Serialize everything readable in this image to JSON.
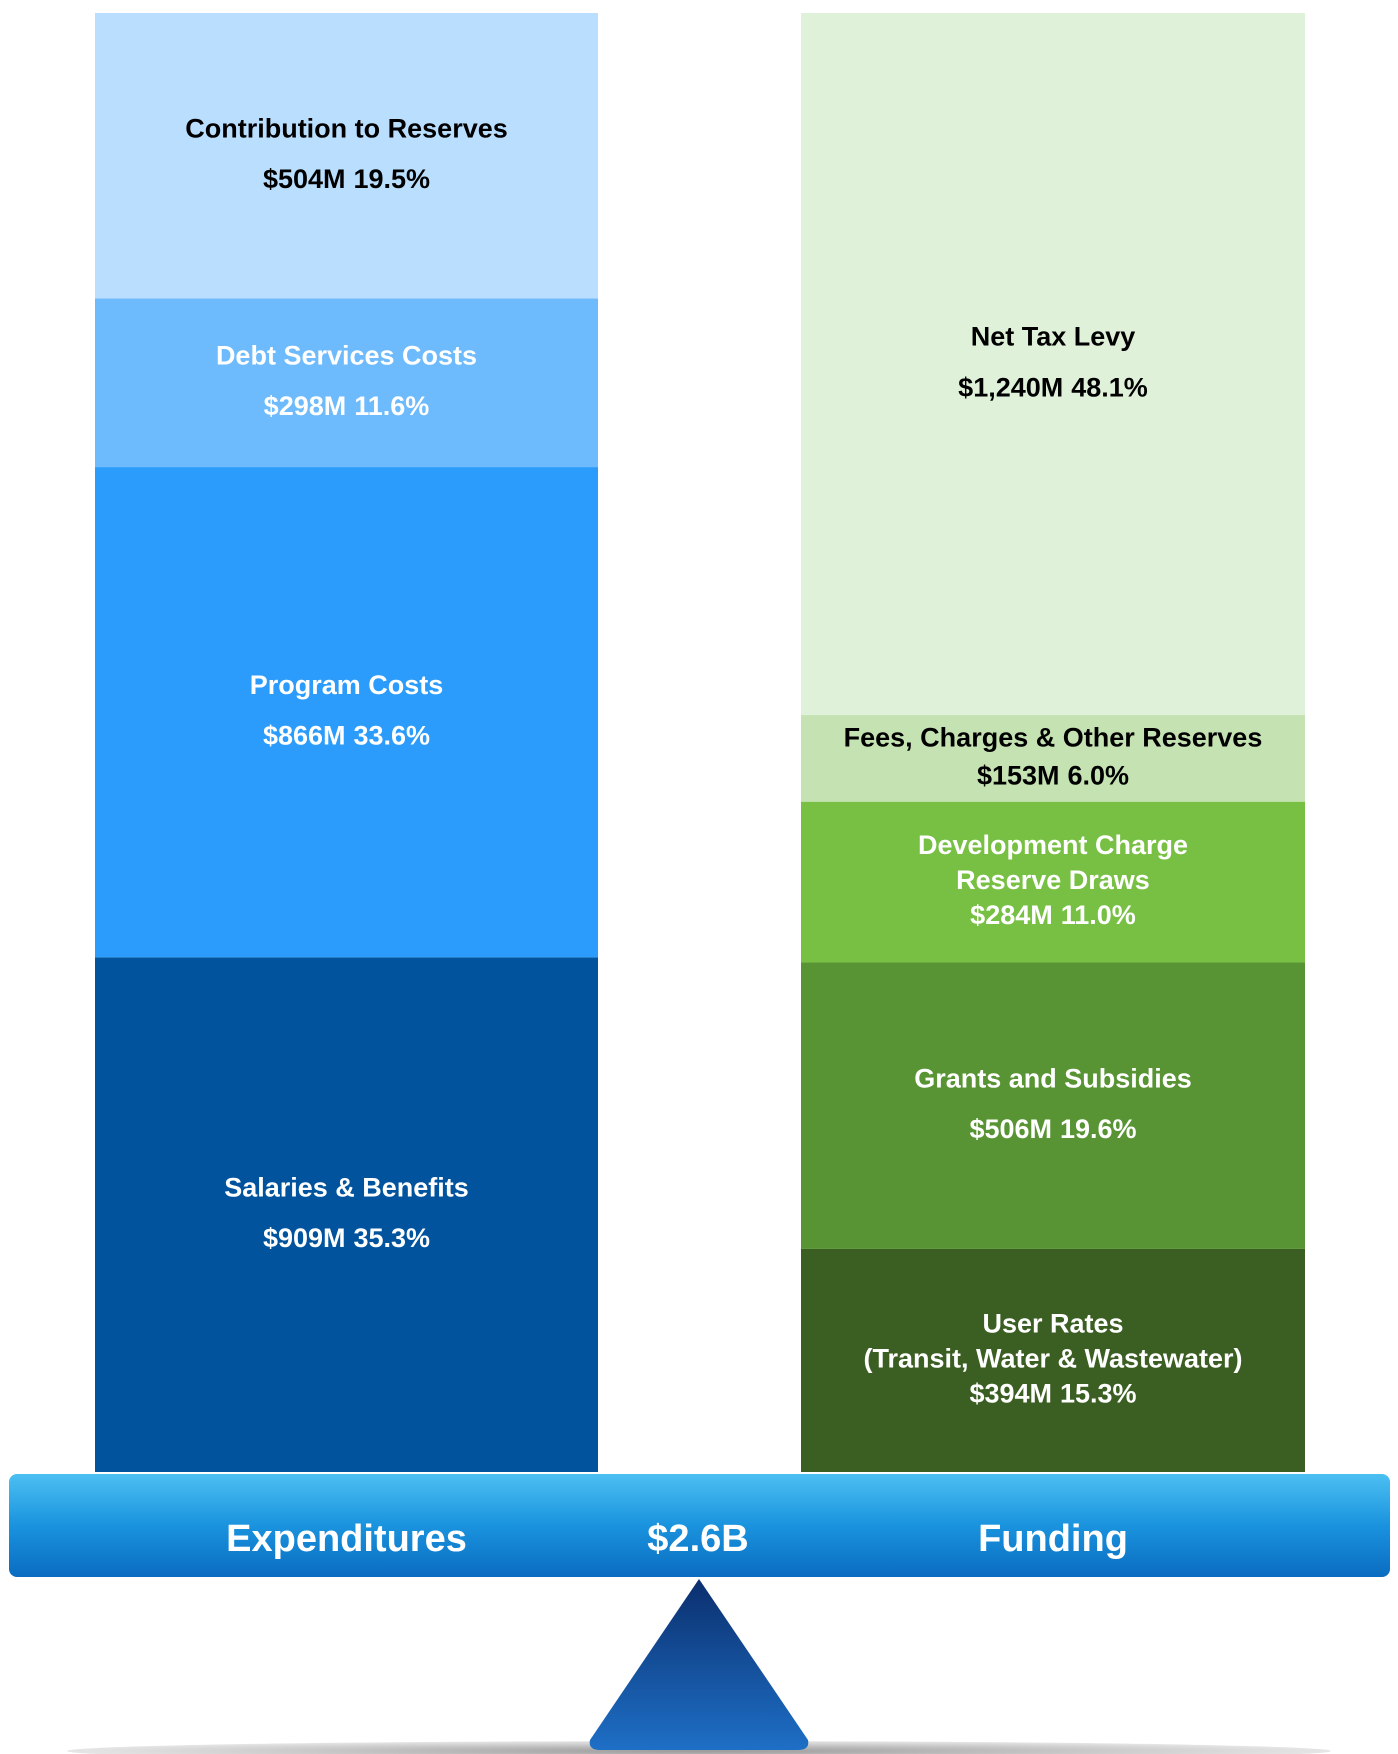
{
  "chart_data": {
    "type": "balance-stacked-bar",
    "total": {
      "value": 2600,
      "label": "$2.6B"
    },
    "stacks": [
      {
        "name": "Expenditures",
        "segments": [
          {
            "name_lines": [
              "Salaries & Benefits"
            ],
            "value": 909,
            "value_label": "$909M",
            "percent": 35.3,
            "percent_label": "35.3%",
            "color": "#00539c",
            "text_color": "#ffffff"
          },
          {
            "name_lines": [
              "Program Costs"
            ],
            "value": 866,
            "value_label": "$866M",
            "percent": 33.6,
            "percent_label": "33.6%",
            "color": "#2b9cfc",
            "text_color": "#ffffff"
          },
          {
            "name_lines": [
              "Debt Services Costs"
            ],
            "value": 298,
            "value_label": "$298M",
            "percent": 11.6,
            "percent_label": "11.6%",
            "color": "#6dbafc",
            "text_color": "#ffffff"
          },
          {
            "name_lines": [
              "Contribution to Reserves"
            ],
            "value": 504,
            "value_label": "$504M",
            "percent": 19.5,
            "percent_label": "19.5%",
            "color": "#b9defe",
            "text_color": "#000000"
          }
        ]
      },
      {
        "name": "Funding",
        "segments": [
          {
            "name_lines": [
              "User Rates",
              "(Transit, Water & Wastewater)"
            ],
            "value": 394,
            "value_label": "$394M",
            "percent": 15.3,
            "percent_label": "15.3%",
            "color": "#3b5e22",
            "text_color": "#ffffff"
          },
          {
            "name_lines": [
              "Grants and Subsidies"
            ],
            "value": 506,
            "value_label": "$506M",
            "percent": 19.6,
            "percent_label": "19.6%",
            "color": "#589434",
            "text_color": "#ffffff"
          },
          {
            "name_lines": [
              "Development Charge",
              "Reserve Draws"
            ],
            "value": 284,
            "value_label": "$284M",
            "percent": 11.0,
            "percent_label": "11.0%",
            "color": "#78c043",
            "text_color": "#ffffff"
          },
          {
            "name_lines": [
              "Fees, Charges & Other Reserves"
            ],
            "value": 153,
            "value_label": "$153M",
            "percent": 6.0,
            "percent_label": "6.0%",
            "color": "#c5e3b2",
            "text_color": "#000000"
          },
          {
            "name_lines": [
              "Net Tax Levy"
            ],
            "value": 1240,
            "value_label": "$1,240M",
            "percent": 48.1,
            "percent_label": "48.1%",
            "color": "#e0f1da",
            "text_color": "#000000"
          }
        ]
      }
    ]
  }
}
